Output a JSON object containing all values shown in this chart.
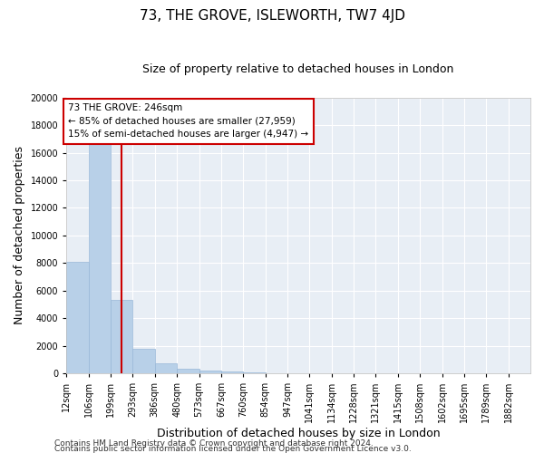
{
  "title": "73, THE GROVE, ISLEWORTH, TW7 4JD",
  "subtitle": "Size of property relative to detached houses in London",
  "xlabel": "Distribution of detached houses by size in London",
  "ylabel": "Number of detached properties",
  "footnote1": "Contains HM Land Registry data © Crown copyright and database right 2024.",
  "footnote2": "Contains public sector information licensed under the Open Government Licence v3.0.",
  "annotation_title": "73 THE GROVE: 246sqm",
  "annotation_line1": "← 85% of detached houses are smaller (27,959)",
  "annotation_line2": "15% of semi-detached houses are larger (4,947) →",
  "bar_color": "#b8d0e8",
  "bar_edge_color": "#99b8d8",
  "vline_color": "#cc0000",
  "vline_x_index": 2.47,
  "annotation_box_color": "#cc0000",
  "categories": [
    "12sqm",
    "106sqm",
    "199sqm",
    "293sqm",
    "386sqm",
    "480sqm",
    "573sqm",
    "667sqm",
    "760sqm",
    "854sqm",
    "947sqm",
    "1041sqm",
    "1134sqm",
    "1228sqm",
    "1321sqm",
    "1415sqm",
    "1508sqm",
    "1602sqm",
    "1695sqm",
    "1789sqm",
    "1882sqm"
  ],
  "bar_heights": [
    8100,
    16600,
    5300,
    1750,
    750,
    300,
    200,
    150,
    80,
    0,
    0,
    0,
    0,
    0,
    0,
    0,
    0,
    0,
    0,
    0,
    0
  ],
  "ylim": [
    0,
    20000
  ],
  "yticks": [
    0,
    2000,
    4000,
    6000,
    8000,
    10000,
    12000,
    14000,
    16000,
    18000,
    20000
  ],
  "background_color": "#e8eef5",
  "grid_color": "#ffffff",
  "title_fontsize": 11,
  "subtitle_fontsize": 9,
  "axis_label_fontsize": 9,
  "tick_fontsize": 7,
  "footnote_fontsize": 6.5
}
